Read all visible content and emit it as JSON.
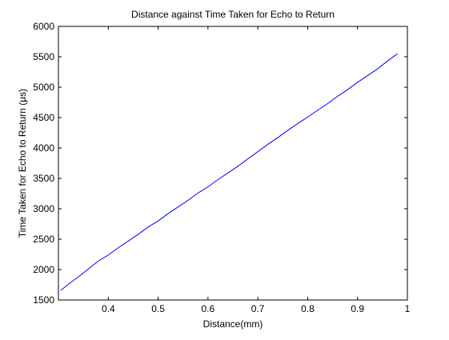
{
  "chart_data": {
    "type": "line",
    "title": "Distance against Time Taken for Echo to Return",
    "xlabel": "Distance(mm)",
    "ylabel": "Time Taken for Echo to Return (μs)",
    "xlim": [
      0.3,
      1.0
    ],
    "ylim": [
      1500,
      6000
    ],
    "xticks": [
      0.4,
      0.5,
      0.6,
      0.7,
      0.8,
      0.9,
      1
    ],
    "xtick_labels": [
      "0.4",
      "0.5",
      "0.6",
      "0.7",
      "0.8",
      "0.9",
      "1"
    ],
    "yticks": [
      1500,
      2000,
      2500,
      3000,
      3500,
      4000,
      4500,
      5000,
      5500,
      6000
    ],
    "ytick_labels": [
      "1500",
      "2000",
      "2500",
      "3000",
      "3500",
      "4000",
      "4500",
      "5000",
      "5500",
      "6000"
    ],
    "grid": false,
    "series": [
      {
        "color": "#0000ff",
        "x": [
          0.305,
          0.32,
          0.34,
          0.36,
          0.38,
          0.4,
          0.42,
          0.44,
          0.46,
          0.48,
          0.5,
          0.52,
          0.54,
          0.56,
          0.58,
          0.6,
          0.62,
          0.64,
          0.66,
          0.68,
          0.7,
          0.72,
          0.74,
          0.76,
          0.78,
          0.8,
          0.82,
          0.84,
          0.86,
          0.88,
          0.9,
          0.92,
          0.94,
          0.96,
          0.98
        ],
        "y": [
          1660,
          1760,
          1880,
          2010,
          2140,
          2240,
          2360,
          2470,
          2580,
          2700,
          2800,
          2920,
          3030,
          3140,
          3260,
          3360,
          3480,
          3590,
          3700,
          3820,
          3940,
          4060,
          4170,
          4290,
          4400,
          4510,
          4620,
          4730,
          4850,
          4960,
          5080,
          5190,
          5300,
          5430,
          5550
        ]
      }
    ]
  }
}
